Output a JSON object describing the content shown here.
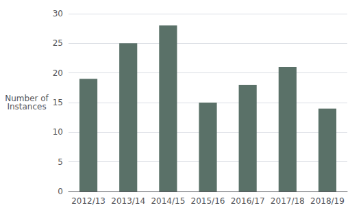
{
  "chart_data": {
    "type": "bar",
    "categories": [
      "2012/13",
      "2013/14",
      "2014/15",
      "2015/16",
      "2016/17",
      "2017/18",
      "2018/19"
    ],
    "values": [
      19,
      25,
      28,
      15,
      18,
      21,
      14
    ],
    "color": "#5a7168",
    "ylabel": "Number of\nInstances",
    "ylim": [
      0,
      30
    ],
    "yticks": [
      0,
      5,
      10,
      15,
      20,
      25,
      30
    ],
    "grid": true
  }
}
